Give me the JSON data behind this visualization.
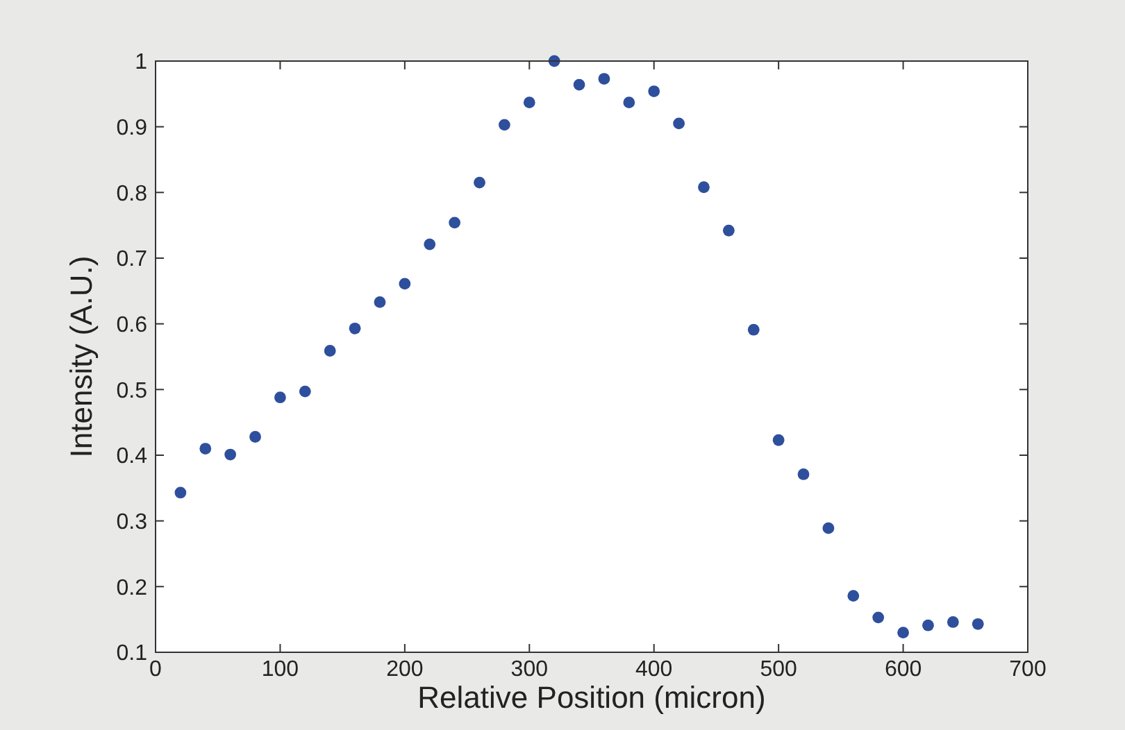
{
  "chart_data": {
    "type": "scatter",
    "xlabel": "Relative Position (micron)",
    "ylabel": "Intensity (A.U.)",
    "x": [
      20,
      40,
      60,
      80,
      100,
      120,
      140,
      160,
      180,
      200,
      220,
      240,
      260,
      280,
      300,
      320,
      340,
      360,
      380,
      400,
      420,
      440,
      460,
      480,
      500,
      520,
      540,
      560,
      580,
      600,
      620,
      640,
      660
    ],
    "series": [
      {
        "color": "#2e4f9c",
        "values": [
          0.343,
          0.41,
          0.401,
          0.428,
          0.488,
          0.497,
          0.559,
          0.593,
          0.633,
          0.661,
          0.721,
          0.754,
          0.815,
          0.903,
          0.937,
          1.0,
          0.964,
          0.973,
          0.937,
          0.954,
          0.905,
          0.808,
          0.742,
          0.591,
          0.423,
          0.371,
          0.289,
          0.186,
          0.153,
          0.13,
          0.141,
          0.146,
          0.143
        ]
      }
    ],
    "xlim": [
      0,
      700
    ],
    "xticks": [
      0,
      100,
      200,
      300,
      400,
      500,
      600,
      700
    ],
    "ylim": [
      0.1,
      1
    ],
    "yticks": [
      0.1,
      0.2,
      0.3,
      0.4,
      0.5,
      0.6,
      0.7,
      0.8,
      0.9,
      1
    ],
    "grid": false,
    "marker": "circle"
  }
}
